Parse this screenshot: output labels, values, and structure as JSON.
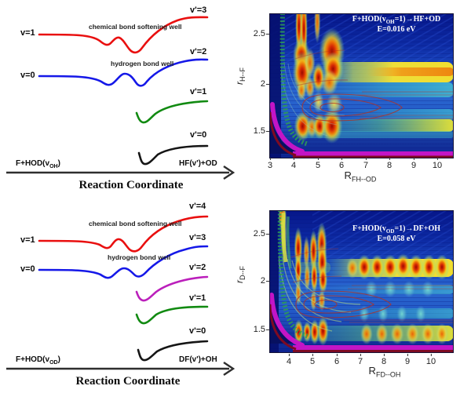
{
  "panels": {
    "tl": {
      "v1": "v=1",
      "v0": "v=0",
      "products": [
        "v'=3",
        "v'=2",
        "v'=1",
        "v'=0"
      ],
      "well_upper": "chemical bond softening well",
      "well_lower": "hydrogen bond well",
      "footer_left": {
        "pre": "F+HOD(v",
        "sub": "OH",
        "post": ")"
      },
      "footer_right": "HF(v')+OD",
      "axis_label": "Reaction Coordinate"
    },
    "bl": {
      "v1": "v=1",
      "v0": "v=0",
      "products": [
        "v'=4",
        "v'=3",
        "v'=2",
        "v'=1",
        "v'=0"
      ],
      "well_upper": "chemical bond softening well",
      "well_lower": "hydrogen bond well",
      "footer_left": {
        "pre": "F+HOD(v",
        "sub": "OD",
        "post": ")"
      },
      "footer_right": "DF(v')+OH",
      "axis_label": "Reaction Coordinate"
    },
    "tr": {
      "title": {
        "pre": "F+HOD(v",
        "sub": "OH",
        "post": "=1)→HF+OD"
      },
      "energy": "E=0.016 eV",
      "xlabel": {
        "pre": "R",
        "sub": "FH--OD"
      },
      "ylabel": {
        "pre": "r",
        "sub": "H--F"
      }
    },
    "br": {
      "title": {
        "pre": "F+HOD(v",
        "sub": "OD",
        "post": "=1)→DF+OH"
      },
      "energy": "E=0.058 eV",
      "xlabel": {
        "pre": "R",
        "sub": "FD--OH"
      },
      "ylabel": {
        "pre": "r",
        "sub": "D--F"
      }
    }
  },
  "chart_data": [
    {
      "type": "line",
      "panel": "top-left",
      "xlabel": "Reaction Coordinate",
      "reactant_label": "F+HOD(vOH)",
      "product_label": "HF(v')+OD",
      "annotations": [
        "chemical bond softening well",
        "hydrogen bond well"
      ],
      "curves": [
        {
          "label": "v=1",
          "color": "#e90f0f",
          "correlates_to": "v'=3",
          "shape": "double well"
        },
        {
          "label": "v=0",
          "color": "#1518e8",
          "correlates_to": "v'=2",
          "shape": "double well"
        },
        {
          "label": "v'=1",
          "color": "#118a11",
          "shape": "single shallow well"
        },
        {
          "label": "v'=0",
          "color": "#151515",
          "shape": "single shallow well"
        }
      ]
    },
    {
      "type": "heatmap",
      "panel": "top-right",
      "title": "F+HOD(vOH=1)→HF+OD",
      "energy_label": "E=0.016 eV",
      "xlabel": "R_FH--OD",
      "ylabel": "r_H--F",
      "xticks": [
        3,
        4,
        5,
        6,
        7,
        8,
        9,
        10
      ],
      "yticks": [
        2.5,
        2,
        1.5
      ],
      "xlim": [
        2.93,
        10.5
      ],
      "ylim": [
        1.22,
        2.71
      ],
      "colormap": "jet",
      "hotspots": [
        {
          "x": 4.15,
          "y": 2.58,
          "rx": 0.07,
          "ry": 0.14,
          "c": "red"
        },
        {
          "x": 4.35,
          "y": 2.55,
          "rx": 0.07,
          "ry": 0.16,
          "c": "red"
        },
        {
          "x": 4.9,
          "y": 2.62,
          "rx": 0.06,
          "ry": 0.1,
          "c": "orange"
        },
        {
          "x": 4.25,
          "y": 2.28,
          "rx": 0.16,
          "ry": 0.08,
          "c": "red"
        },
        {
          "x": 4.28,
          "y": 2.1,
          "rx": 0.18,
          "ry": 0.1,
          "c": "red"
        },
        {
          "x": 4.6,
          "y": 2.2,
          "rx": 0.1,
          "ry": 0.07,
          "c": "orange"
        },
        {
          "x": 4.95,
          "y": 2.05,
          "rx": 0.12,
          "ry": 0.07,
          "c": "red"
        },
        {
          "x": 5.5,
          "y": 2.32,
          "rx": 0.24,
          "ry": 0.11,
          "c": "red"
        },
        {
          "x": 5.55,
          "y": 2.14,
          "rx": 0.2,
          "ry": 0.08,
          "c": "red"
        },
        {
          "x": 5.4,
          "y": 2.0,
          "rx": 0.16,
          "ry": 0.06,
          "c": "orange"
        },
        {
          "x": 4.95,
          "y": 1.8,
          "rx": 0.1,
          "ry": 0.05,
          "c": "yellow"
        },
        {
          "x": 5.6,
          "y": 1.78,
          "rx": 0.15,
          "ry": 0.05,
          "c": "yellow"
        },
        {
          "x": 4.3,
          "y": 1.55,
          "rx": 0.16,
          "ry": 0.07,
          "c": "red"
        },
        {
          "x": 4.68,
          "y": 1.54,
          "rx": 0.1,
          "ry": 0.05,
          "c": "orange"
        },
        {
          "x": 5.0,
          "y": 1.55,
          "rx": 0.13,
          "ry": 0.06,
          "c": "red"
        },
        {
          "x": 5.5,
          "y": 1.55,
          "rx": 0.2,
          "ry": 0.08,
          "c": "red"
        },
        {
          "x": 4.6,
          "y": 1.95,
          "rx": 0.09,
          "ry": 0.05,
          "c": "orange"
        },
        {
          "x": 4.25,
          "y": 1.92,
          "rx": 0.09,
          "ry": 0.05,
          "c": "orange"
        }
      ]
    },
    {
      "type": "line",
      "panel": "bottom-left",
      "xlabel": "Reaction Coordinate",
      "reactant_label": "F+HOD(vOD)",
      "product_label": "DF(v')+OH",
      "annotations": [
        "chemical bond softening well",
        "hydrogen bond well"
      ],
      "curves": [
        {
          "label": "v=1",
          "color": "#e90f0f",
          "correlates_to": "v'=4",
          "shape": "double well"
        },
        {
          "label": "v=0",
          "color": "#1518e8",
          "correlates_to": "v'=3",
          "shape": "double well"
        },
        {
          "label": "v'=2",
          "color": "#bb1fbb",
          "shape": "single shallow well"
        },
        {
          "label": "v'=1",
          "color": "#118a11",
          "shape": "single shallow well"
        },
        {
          "label": "v'=0",
          "color": "#151515",
          "shape": "single shallow well"
        }
      ]
    },
    {
      "type": "heatmap",
      "panel": "bottom-right",
      "title": "F+HOD(vOD=1)→DF+OH",
      "energy_label": "E=0.058 eV",
      "xlabel": "R_FD--OH",
      "ylabel": "r_D--F",
      "xticks": [
        4,
        5,
        6,
        7,
        8,
        9,
        10
      ],
      "yticks": [
        2.5,
        2,
        1.5
      ],
      "xlim": [
        3.17,
        11.0
      ],
      "ylim": [
        1.25,
        2.746
      ],
      "colormap": "jet",
      "hotspots": [
        {
          "x": 4.4,
          "y": 2.35,
          "rx": 0.08,
          "ry": 0.1,
          "c": "red"
        },
        {
          "x": 4.4,
          "y": 2.12,
          "rx": 0.07,
          "ry": 0.08,
          "c": "red"
        },
        {
          "x": 4.4,
          "y": 1.88,
          "rx": 0.06,
          "ry": 0.06,
          "c": "orange"
        },
        {
          "x": 4.42,
          "y": 1.47,
          "rx": 0.09,
          "ry": 0.06,
          "c": "red"
        },
        {
          "x": 4.75,
          "y": 2.3,
          "rx": 0.06,
          "ry": 0.08,
          "c": "orange"
        },
        {
          "x": 4.78,
          "y": 2.05,
          "rx": 0.06,
          "ry": 0.07,
          "c": "orange"
        },
        {
          "x": 4.78,
          "y": 1.47,
          "rx": 0.08,
          "ry": 0.05,
          "c": "red"
        },
        {
          "x": 5.05,
          "y": 2.32,
          "rx": 0.08,
          "ry": 0.1,
          "c": "red"
        },
        {
          "x": 5.08,
          "y": 2.05,
          "rx": 0.07,
          "ry": 0.08,
          "c": "red"
        },
        {
          "x": 5.05,
          "y": 1.8,
          "rx": 0.06,
          "ry": 0.05,
          "c": "orange"
        },
        {
          "x": 5.1,
          "y": 1.47,
          "rx": 0.09,
          "ry": 0.06,
          "c": "red"
        },
        {
          "x": 5.4,
          "y": 2.38,
          "rx": 0.1,
          "ry": 0.11,
          "c": "red"
        },
        {
          "x": 5.42,
          "y": 2.2,
          "rx": 0.1,
          "ry": 0.09,
          "c": "red"
        },
        {
          "x": 5.45,
          "y": 2.02,
          "rx": 0.09,
          "ry": 0.07,
          "c": "red"
        },
        {
          "x": 5.4,
          "y": 1.8,
          "rx": 0.07,
          "ry": 0.05,
          "c": "orange"
        },
        {
          "x": 5.45,
          "y": 1.48,
          "rx": 0.11,
          "ry": 0.07,
          "c": "red"
        },
        {
          "x": 3.73,
          "y": 2.68,
          "rx": 0.08,
          "ry": 0.07,
          "c": "red"
        },
        {
          "x": 3.78,
          "y": 2.5,
          "rx": 0.07,
          "ry": 0.13,
          "c": "yellow"
        },
        {
          "x": 6.7,
          "y": 2.14,
          "rx": 0.12,
          "ry": 0.05,
          "c": "orange"
        },
        {
          "x": 7.2,
          "y": 2.15,
          "rx": 0.14,
          "ry": 0.06,
          "c": "red"
        },
        {
          "x": 7.75,
          "y": 2.15,
          "rx": 0.14,
          "ry": 0.06,
          "c": "red"
        },
        {
          "x": 8.3,
          "y": 2.15,
          "rx": 0.15,
          "ry": 0.06,
          "c": "red"
        },
        {
          "x": 8.85,
          "y": 2.16,
          "rx": 0.15,
          "ry": 0.06,
          "c": "red"
        },
        {
          "x": 9.4,
          "y": 2.15,
          "rx": 0.15,
          "ry": 0.06,
          "c": "red"
        },
        {
          "x": 9.95,
          "y": 2.15,
          "rx": 0.14,
          "ry": 0.06,
          "c": "red"
        },
        {
          "x": 10.5,
          "y": 2.15,
          "rx": 0.14,
          "ry": 0.06,
          "c": "red"
        },
        {
          "x": 7.3,
          "y": 1.45,
          "rx": 0.12,
          "ry": 0.05,
          "c": "orange"
        },
        {
          "x": 7.95,
          "y": 1.45,
          "rx": 0.12,
          "ry": 0.05,
          "c": "orange"
        },
        {
          "x": 8.6,
          "y": 1.45,
          "rx": 0.13,
          "ry": 0.05,
          "c": "orange"
        },
        {
          "x": 9.25,
          "y": 1.45,
          "rx": 0.13,
          "ry": 0.05,
          "c": "orange"
        },
        {
          "x": 9.9,
          "y": 1.45,
          "rx": 0.13,
          "ry": 0.05,
          "c": "orange"
        },
        {
          "x": 10.5,
          "y": 1.45,
          "rx": 0.12,
          "ry": 0.05,
          "c": "orange"
        },
        {
          "x": 7.5,
          "y": 1.92,
          "rx": 0.12,
          "ry": 0.04,
          "c": "teal"
        },
        {
          "x": 8.3,
          "y": 1.92,
          "rx": 0.12,
          "ry": 0.04,
          "c": "teal"
        },
        {
          "x": 9.1,
          "y": 1.92,
          "rx": 0.12,
          "ry": 0.04,
          "c": "teal"
        },
        {
          "x": 9.9,
          "y": 1.92,
          "rx": 0.12,
          "ry": 0.04,
          "c": "teal"
        },
        {
          "x": 7.2,
          "y": 1.66,
          "rx": 0.1,
          "ry": 0.04,
          "c": "teal"
        },
        {
          "x": 8.0,
          "y": 1.66,
          "rx": 0.1,
          "ry": 0.04,
          "c": "teal"
        },
        {
          "x": 8.8,
          "y": 1.66,
          "rx": 0.1,
          "ry": 0.04,
          "c": "teal"
        },
        {
          "x": 9.6,
          "y": 1.66,
          "rx": 0.1,
          "ry": 0.04,
          "c": "teal"
        }
      ]
    }
  ]
}
